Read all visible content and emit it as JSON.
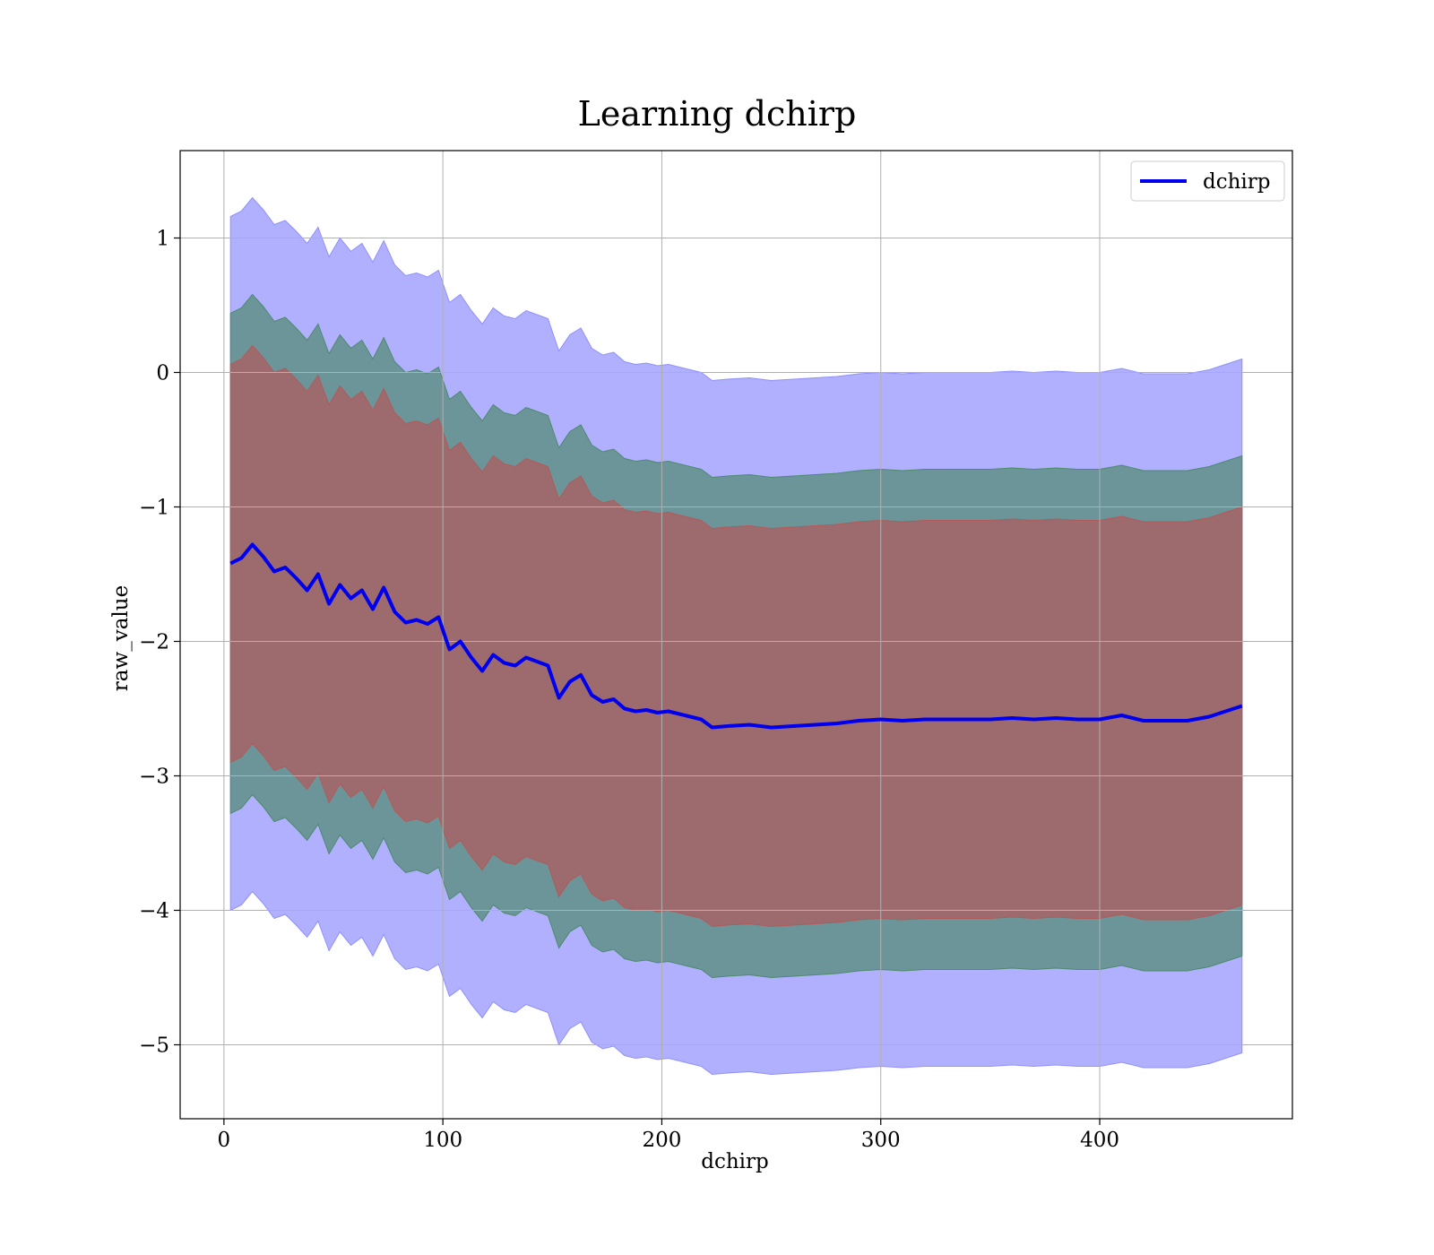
{
  "chart_data": {
    "type": "line",
    "title": "Learning dchirp",
    "xlabel": "dchirp",
    "ylabel": "raw_value",
    "xlim": [
      -20,
      488
    ],
    "ylim": [
      -5.55,
      1.65
    ],
    "xticks": [
      0,
      100,
      200,
      300,
      400
    ],
    "xtick_labels": [
      "0",
      "100",
      "200",
      "300",
      "400"
    ],
    "yticks": [
      1,
      0,
      -1,
      -2,
      -3,
      -4,
      -5
    ],
    "ytick_labels": [
      "1",
      "0",
      "−1",
      "−2",
      "−3",
      "−4",
      "−5"
    ],
    "grid": true,
    "legend": {
      "position": "top-right",
      "entries": [
        "dchirp"
      ]
    },
    "colors": {
      "line": "#0000ee",
      "band_outer": "#8f8fff",
      "band_middle": "#4e8a6e",
      "band_inner": "#b25a5a",
      "grid": "#b0b0b0"
    },
    "series": [
      {
        "name": "dchirp",
        "x": [
          3,
          8,
          13,
          18,
          23,
          28,
          33,
          38,
          43,
          48,
          53,
          58,
          63,
          68,
          73,
          78,
          83,
          88,
          93,
          98,
          103,
          108,
          113,
          118,
          123,
          128,
          133,
          138,
          143,
          148,
          153,
          158,
          163,
          168,
          173,
          178,
          183,
          188,
          193,
          198,
          203,
          208,
          213,
          218,
          223,
          230,
          240,
          250,
          260,
          270,
          280,
          290,
          300,
          310,
          320,
          330,
          340,
          350,
          360,
          370,
          380,
          390,
          400,
          410,
          420,
          430,
          440,
          450,
          465
        ],
        "values": [
          -1.42,
          -1.38,
          -1.28,
          -1.37,
          -1.48,
          -1.45,
          -1.53,
          -1.62,
          -1.5,
          -1.72,
          -1.58,
          -1.68,
          -1.62,
          -1.76,
          -1.6,
          -1.78,
          -1.86,
          -1.84,
          -1.87,
          -1.82,
          -2.06,
          -2.0,
          -2.12,
          -2.22,
          -2.1,
          -2.16,
          -2.18,
          -2.12,
          -2.15,
          -2.18,
          -2.42,
          -2.3,
          -2.25,
          -2.4,
          -2.45,
          -2.43,
          -2.5,
          -2.52,
          -2.51,
          -2.53,
          -2.52,
          -2.54,
          -2.56,
          -2.58,
          -2.64,
          -2.63,
          -2.62,
          -2.64,
          -2.63,
          -2.62,
          -2.61,
          -2.59,
          -2.58,
          -2.59,
          -2.58,
          -2.58,
          -2.58,
          -2.58,
          -2.57,
          -2.58,
          -2.57,
          -2.58,
          -2.58,
          -2.55,
          -2.59,
          -2.59,
          -2.59,
          -2.56,
          -2.48
        ]
      }
    ],
    "bands": [
      {
        "level": "outer",
        "upper_offset": 2.58,
        "lower_offset": -2.58
      },
      {
        "level": "middle",
        "upper_offset": 1.86,
        "lower_offset": -1.86
      },
      {
        "level": "inner",
        "upper_offset": 1.48,
        "lower_offset": -1.48
      }
    ]
  }
}
